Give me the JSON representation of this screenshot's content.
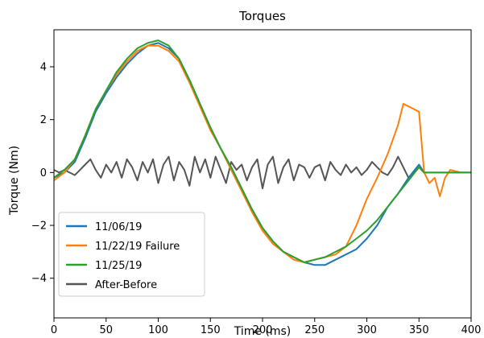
{
  "chart_data": {
    "type": "line",
    "title": "Torques",
    "xlabel": "Time (ms)",
    "ylabel": "Torque (Nm)",
    "xlim": [
      0,
      400
    ],
    "ylim": [
      -5.5,
      5.4
    ],
    "xticks": [
      0,
      50,
      100,
      150,
      200,
      250,
      300,
      350,
      400
    ],
    "yticks": [
      -4,
      -2,
      0,
      2,
      4
    ],
    "xtick_labels": [
      "0",
      "50",
      "100",
      "150",
      "200",
      "250",
      "300",
      "350",
      "400"
    ],
    "ytick_labels": [
      "−4",
      "−2",
      "0",
      "2",
      "4"
    ],
    "grid": false,
    "legend_position": "lower-left",
    "series": [
      {
        "name": "11/06/19",
        "color": "#1f77b4",
        "x": [
          0,
          10,
          20,
          30,
          40,
          50,
          60,
          70,
          80,
          90,
          100,
          110,
          120,
          130,
          140,
          150,
          160,
          170,
          180,
          190,
          200,
          210,
          220,
          230,
          240,
          250,
          260,
          270,
          280,
          290,
          300,
          310,
          320,
          330,
          340,
          350,
          355,
          400
        ],
        "y": [
          -0.2,
          0.0,
          0.4,
          1.3,
          2.3,
          3.0,
          3.6,
          4.1,
          4.5,
          4.8,
          4.9,
          4.7,
          4.3,
          3.5,
          2.6,
          1.7,
          0.9,
          0.2,
          -0.6,
          -1.4,
          -2.1,
          -2.6,
          -3.0,
          -3.2,
          -3.4,
          -3.5,
          -3.5,
          -3.3,
          -3.1,
          -2.9,
          -2.5,
          -2.0,
          -1.3,
          -0.8,
          -0.2,
          0.3,
          0.0,
          0.0
        ]
      },
      {
        "name": "11/22/19 Failure",
        "color": "#ff7f0e",
        "x": [
          0,
          10,
          20,
          30,
          40,
          50,
          60,
          70,
          80,
          90,
          100,
          110,
          120,
          130,
          140,
          150,
          160,
          170,
          180,
          190,
          200,
          210,
          220,
          230,
          240,
          250,
          260,
          270,
          280,
          290,
          300,
          310,
          320,
          330,
          335,
          340,
          345,
          350,
          355,
          360,
          365,
          370,
          375,
          380,
          390,
          400
        ],
        "y": [
          -0.3,
          0.0,
          0.5,
          1.4,
          2.4,
          3.1,
          3.7,
          4.2,
          4.6,
          4.8,
          4.8,
          4.6,
          4.2,
          3.4,
          2.5,
          1.6,
          0.9,
          0.1,
          -0.7,
          -1.5,
          -2.2,
          -2.7,
          -3.0,
          -3.3,
          -3.4,
          -3.3,
          -3.2,
          -3.1,
          -2.8,
          -2.0,
          -1.0,
          -0.2,
          0.7,
          1.8,
          2.6,
          2.5,
          2.4,
          2.3,
          0.0,
          -0.4,
          -0.2,
          -0.9,
          -0.2,
          0.1,
          0.0,
          0.0
        ]
      },
      {
        "name": "11/25/19",
        "color": "#2ca02c",
        "x": [
          0,
          10,
          20,
          30,
          40,
          50,
          60,
          70,
          80,
          90,
          100,
          110,
          120,
          130,
          140,
          150,
          160,
          170,
          180,
          190,
          200,
          210,
          220,
          230,
          240,
          250,
          260,
          270,
          280,
          290,
          300,
          310,
          320,
          330,
          340,
          350,
          355,
          400
        ],
        "y": [
          -0.2,
          0.1,
          0.5,
          1.4,
          2.4,
          3.1,
          3.8,
          4.3,
          4.7,
          4.9,
          5.0,
          4.8,
          4.3,
          3.5,
          2.6,
          1.7,
          0.9,
          0.2,
          -0.6,
          -1.4,
          -2.1,
          -2.6,
          -3.0,
          -3.2,
          -3.4,
          -3.3,
          -3.2,
          -3.0,
          -2.8,
          -2.5,
          -2.2,
          -1.8,
          -1.3,
          -0.8,
          -0.3,
          0.2,
          0.0,
          0.0
        ]
      },
      {
        "name": "After-Before",
        "color": "#555555",
        "x": [
          0,
          5,
          10,
          15,
          20,
          25,
          30,
          35,
          40,
          45,
          50,
          55,
          60,
          65,
          70,
          75,
          80,
          85,
          90,
          95,
          100,
          105,
          110,
          115,
          120,
          125,
          130,
          135,
          140,
          145,
          150,
          155,
          160,
          165,
          170,
          175,
          180,
          185,
          190,
          195,
          200,
          205,
          210,
          215,
          220,
          225,
          230,
          235,
          240,
          245,
          250,
          255,
          260,
          265,
          270,
          275,
          280,
          285,
          290,
          295,
          300,
          305,
          310,
          315,
          320,
          325,
          330,
          335,
          340,
          345,
          350,
          355
        ],
        "y": [
          0.1,
          0.0,
          0.1,
          0.0,
          -0.1,
          0.1,
          0.3,
          0.5,
          0.1,
          -0.2,
          0.3,
          0.0,
          0.4,
          -0.2,
          0.5,
          0.2,
          -0.3,
          0.4,
          0.0,
          0.5,
          -0.4,
          0.3,
          0.6,
          -0.3,
          0.4,
          0.1,
          -0.5,
          0.6,
          0.0,
          0.5,
          -0.2,
          0.6,
          0.1,
          -0.4,
          0.4,
          0.1,
          0.3,
          -0.3,
          0.2,
          0.5,
          -0.6,
          0.3,
          0.6,
          -0.4,
          0.2,
          0.5,
          -0.3,
          0.3,
          0.2,
          -0.2,
          0.2,
          0.3,
          -0.3,
          0.4,
          0.1,
          -0.1,
          0.3,
          0.0,
          0.2,
          -0.1,
          0.1,
          0.4,
          0.2,
          0.0,
          -0.1,
          0.2,
          0.6,
          0.2,
          -0.2,
          0.0,
          0.2,
          0.0
        ]
      }
    ]
  }
}
